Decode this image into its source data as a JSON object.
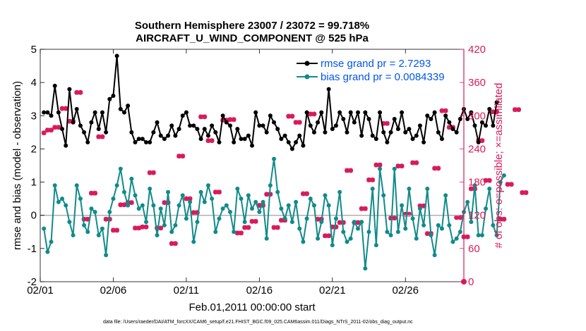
{
  "colors": {
    "rmse": "#000000",
    "bias": "#128a8a",
    "obs": "#d81b5b",
    "legend_text": "#0055ee",
    "zero_line": "#b0b0b0"
  },
  "chart_data": {
    "type": "line",
    "title": "Southern Hemisphere 23007 / 23072 = 99.718%",
    "subtitle": "AIRCRAFT_U_WIND_COMPONENT @ 525 hPa",
    "xlabel": "Feb.01,2011 00:00:00 start",
    "ylabel": "rmse and bias (model - observation)",
    "ylabel_right": "# of obs: o=possible; ×=assimilated",
    "xlim": [
      0,
      29
    ],
    "ylim": [
      -2,
      5
    ],
    "ylim_right": [
      0,
      420
    ],
    "x_ticks": [
      0,
      5,
      10,
      15,
      20,
      25
    ],
    "x_tick_labels": [
      "02/01",
      "02/06",
      "02/11",
      "02/16",
      "02/21",
      "02/26"
    ],
    "y_ticks": [
      -2,
      -1,
      0,
      1,
      2,
      3,
      4,
      5
    ],
    "y_tick_labels": [
      "-2",
      "-1",
      "0",
      "1",
      "2",
      "3",
      "4",
      "5"
    ],
    "y2_ticks": [
      0,
      60,
      120,
      180,
      240,
      300,
      360,
      420
    ],
    "y2_tick_labels": [
      "0",
      "60",
      "120",
      "180",
      "240",
      "300",
      "360",
      "420"
    ],
    "x_step": 0.25,
    "series": [
      {
        "name": "rmse grand pr = 2.7293",
        "axis": "left",
        "values": [
          3.1,
          3.1,
          3.0,
          3.9,
          3.1,
          2.6,
          2.1,
          3.8,
          2.8,
          3.2,
          2.7,
          2.5,
          2.2,
          2.8,
          3.1,
          2.6,
          3.1,
          2.5,
          3.5,
          3.6,
          4.8,
          3.2,
          3.1,
          3.3,
          2.5,
          2.2,
          2.3,
          2.3,
          2.2,
          2.2,
          2.5,
          2.8,
          2.4,
          2.3,
          2.4,
          2.7,
          2.4,
          2.6,
          3.0,
          3.1,
          2.7,
          2.7,
          2.6,
          2.3,
          2.6,
          2.4,
          2.7,
          2.5,
          2.2,
          3.0,
          2.8,
          2.7,
          2.2,
          2.6,
          2.3,
          2.3,
          2.4,
          2.1,
          3.1,
          2.7,
          2.7,
          2.5,
          3.0,
          2.8,
          2.6,
          2.3,
          2.4,
          2.2,
          2.0,
          2.2,
          2.4,
          2.1,
          3.1,
          2.7,
          2.5,
          2.8,
          3.1,
          2.5,
          3.8,
          2.6,
          2.7,
          3.1,
          2.9,
          2.5,
          3.1,
          2.8,
          3.1,
          2.4,
          3.1,
          2.9,
          2.4,
          2.3,
          3.1,
          2.5,
          2.2,
          2.5,
          2.9,
          2.6,
          3.1,
          2.5,
          2.6,
          2.3,
          2.4,
          2.7,
          2.2,
          3.0,
          2.9,
          3.1,
          2.5,
          2.3,
          3.0,
          2.8,
          2.6,
          2.5,
          2.9,
          3.2,
          2.9,
          3.1,
          2.7,
          2.2,
          2.8,
          2.7,
          3.2,
          2.7,
          3.4
        ]
      },
      {
        "name": "bias grand pr = 0.0084339",
        "axis": "left",
        "values": [
          -0.4,
          -1.1,
          -0.8,
          0.9,
          0.4,
          0.5,
          0.3,
          -0.2,
          -0.6,
          0.9,
          0.5,
          -0.3,
          -0.5,
          0.2,
          0.1,
          -0.6,
          -0.4,
          -1.2,
          0.1,
          0.5,
          0.9,
          1.4,
          0.7,
          0.3,
          1.1,
          0.6,
          0.2,
          0.3,
          -0.2,
          0.8,
          0.3,
          -0.6,
          0.2,
          -0.3,
          0.7,
          -0.5,
          -0.3,
          0.3,
          0.6,
          -0.1,
          0.4,
          -0.8,
          -0.2,
          0.7,
          0.4,
          0.9,
          0.5,
          -0.5,
          -0.1,
          0.2,
          0.3,
          0.1,
          -0.5,
          0.8,
          0.5,
          -0.2,
          0.6,
          0.2,
          0.4,
          0.1,
          0.4,
          -0.7,
          0.9,
          1.7,
          0.7,
          0.2,
          -0.1,
          0.3,
          -0.2,
          0.4,
          -0.4,
          -0.8,
          -0.1,
          0.5,
          0.3,
          -0.7,
          -0.2,
          0.6,
          0.3,
          -0.9,
          -0.1,
          0.7,
          -0.5,
          -0.8,
          -0.7,
          -0.2,
          -0.4,
          -0.2,
          -1.6,
          -0.5,
          0.8,
          -0.9,
          1.4,
          0.6,
          -0.5,
          -0.6,
          1.4,
          -0.5,
          0.3,
          -0.4,
          0.8,
          -0.1,
          -0.7,
          0.2,
          -0.3,
          0.8,
          -0.6,
          -1.2,
          -0.3,
          -0.4,
          0.6,
          -0.3,
          -0.8,
          -0.7,
          -0.5,
          0.1,
          0.4,
          -0.2,
          0.9,
          -0.6,
          -0.6,
          0.2,
          0.8,
          -0.3,
          -0.6,
          1.0,
          1.2
        ]
      },
      {
        "name": "obs possible / assimilated",
        "axis": "right",
        "values": [
          269,
          274,
          274,
          279,
          279,
          313,
          313,
          290,
          290,
          342,
          342,
          113,
          113,
          160,
          160,
          262,
          262,
          113,
          113,
          93,
          93,
          139,
          139,
          143,
          143,
          97,
          97,
          99,
          99,
          197,
          197,
          97,
          97,
          143,
          143,
          69,
          69,
          227,
          227,
          150,
          150,
          125,
          125,
          298,
          298,
          255,
          255,
          162,
          162,
          292,
          292,
          293,
          293,
          88,
          88,
          98,
          98,
          109,
          109,
          138,
          138,
          158,
          158,
          98,
          98,
          111,
          111,
          299,
          299,
          288,
          288,
          159,
          159,
          303,
          303,
          113,
          113,
          83,
          83,
          99,
          99,
          107,
          107,
          201,
          201,
          107,
          107,
          132,
          132,
          184,
          184,
          211,
          211,
          286,
          286,
          115,
          115,
          209,
          209,
          122,
          122,
          215,
          215,
          137,
          137,
          87,
          87,
          205,
          205,
          309,
          309,
          279,
          279,
          116,
          116,
          81,
          81,
          168,
          168,
          255,
          255,
          183,
          183,
          307,
          307,
          113,
          113,
          176,
          176,
          311,
          311,
          161,
          161
        ]
      }
    ],
    "legend": [
      "rmse grand pr = 2.7293",
      "bias grand pr = 0.0084339"
    ],
    "legend_position": "top-right"
  },
  "footer": "data file: /Users/raeder/DAI/ATM_forcXX/CAM6_setup/f.e21.FHIST_BGC.f09_025.CAM6assim.011/Diags_NTrS_2011-02/obs_diag_output.nc"
}
